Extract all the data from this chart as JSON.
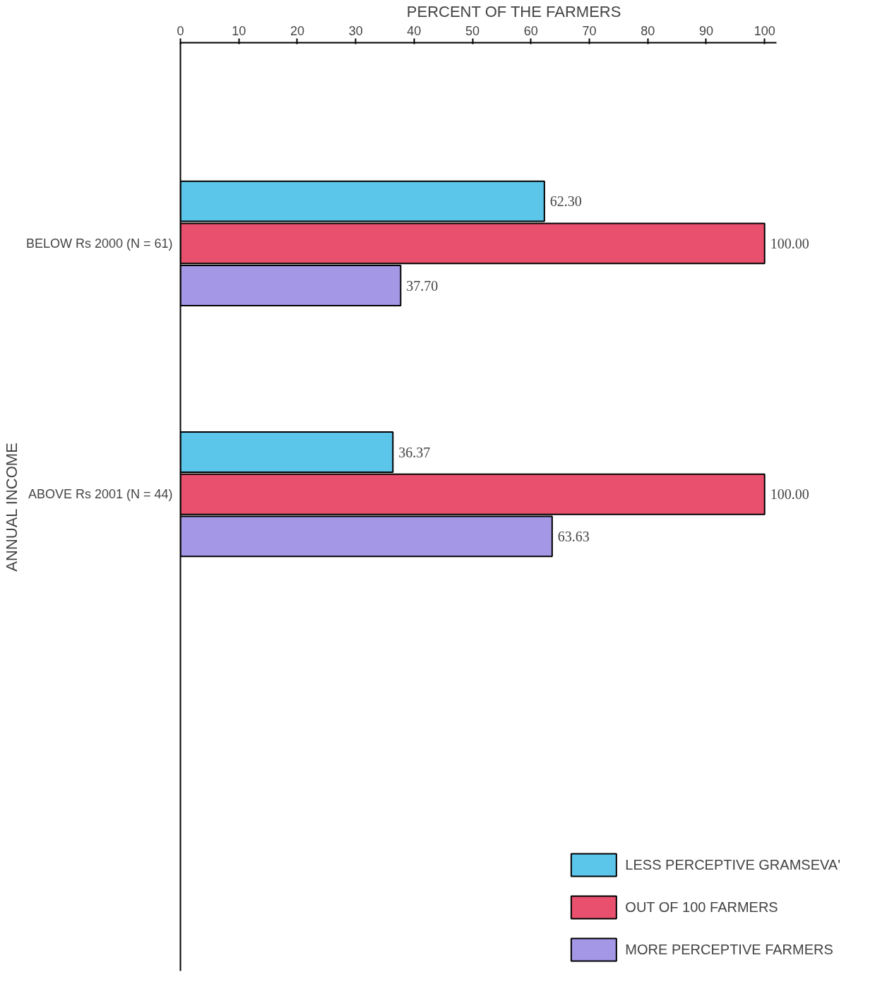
{
  "chart_data": {
    "type": "bar",
    "orientation": "horizontal",
    "xlabel": "PERCENT OF THE FARMERS",
    "ylabel": "ANNUAL INCOME",
    "categories": [
      "BELOW Rs 2000 (N = 61)",
      "ABOVE Rs 2001 (N = 44)"
    ],
    "series": [
      {
        "name": "LESS PERCEPTIVE GRAMSEVA'",
        "color": "#5cc6ea",
        "values": [
          62.3,
          36.37
        ],
        "value_labels": [
          "62.30",
          "36.37"
        ]
      },
      {
        "name": "OUT OF 100 FARMERS",
        "color": "#e8506e",
        "values": [
          100.0,
          100.0
        ],
        "value_labels": [
          "100.00",
          "100.00"
        ]
      },
      {
        "name": "MORE PERCEPTIVE FARMERS",
        "color": "#a497e6",
        "values": [
          37.7,
          63.63
        ],
        "value_labels": [
          "37.70",
          "63.63"
        ]
      }
    ],
    "xlim": [
      0,
      102
    ],
    "xticks": [
      0,
      10,
      20,
      30,
      40,
      50,
      60,
      70,
      80,
      90,
      100
    ],
    "legend": "bottom right"
  }
}
